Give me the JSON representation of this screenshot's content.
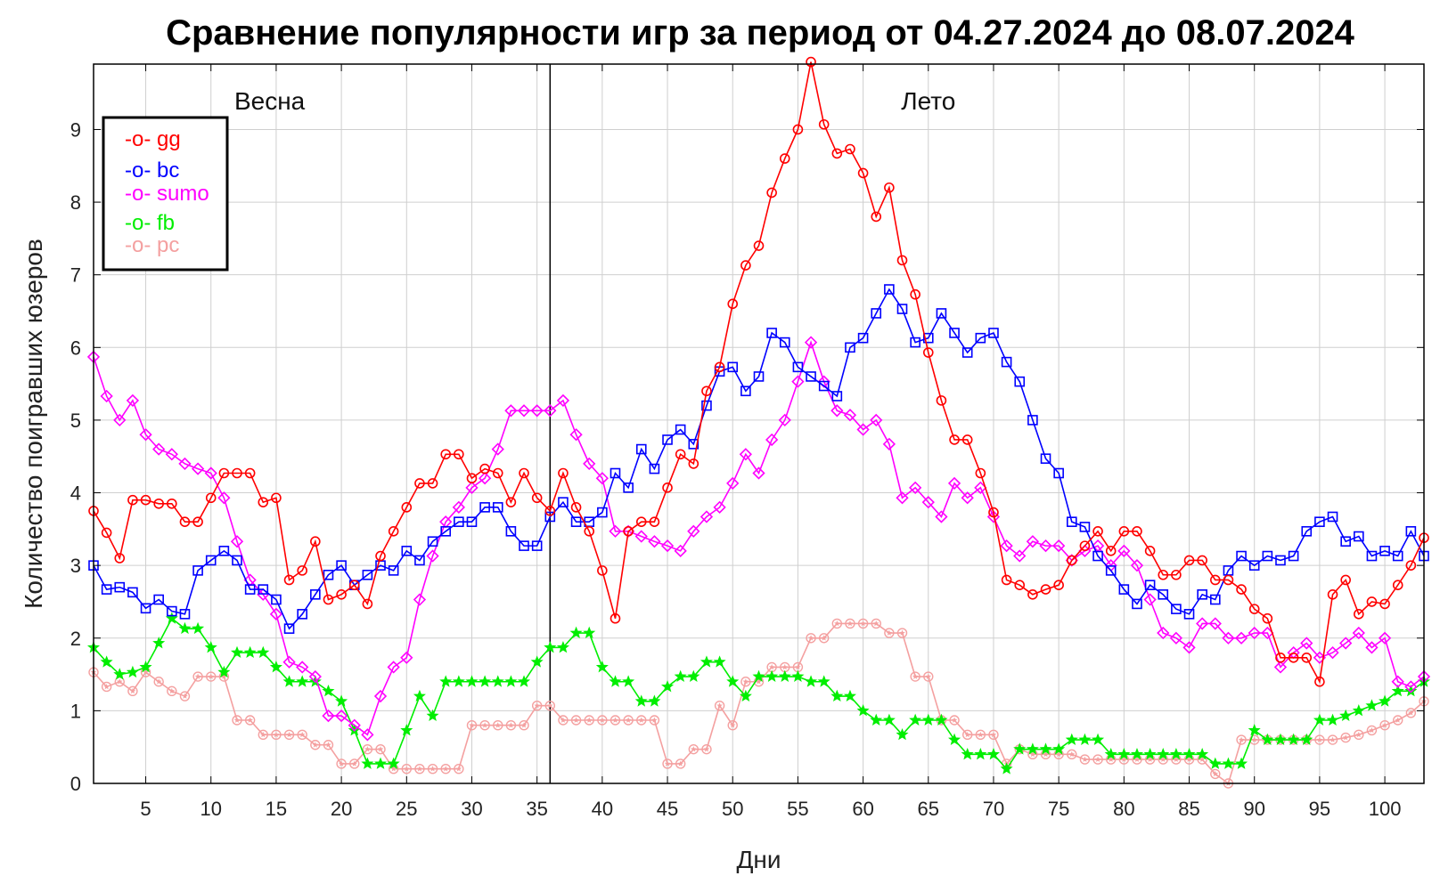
{
  "chart_data": {
    "type": "line",
    "title": "Сравнение популярности игр за период от 04.27.2024 до 08.07.2024",
    "xlabel": "Дни",
    "ylabel": "Количество поигравших юзеров",
    "xlim": [
      1,
      103
    ],
    "ylim": [
      0,
      9.9
    ],
    "xticks": [
      5,
      10,
      15,
      20,
      25,
      30,
      35,
      40,
      45,
      50,
      55,
      60,
      65,
      70,
      75,
      80,
      85,
      90,
      95,
      100
    ],
    "yticks": [
      0,
      1,
      2,
      3,
      4,
      5,
      6,
      7,
      8,
      9
    ],
    "grid": true,
    "legend_position": "top-left",
    "divider_x": 36,
    "annotations": [
      {
        "text": "Весна",
        "x": 14.5,
        "y": 9.4
      },
      {
        "text": "Лето",
        "x": 65,
        "y": 9.4
      }
    ],
    "series": [
      {
        "name": "gg",
        "legend_label": "-o- gg",
        "color": "#ff0000",
        "marker": "circle",
        "values": [
          3.75,
          3.45,
          3.1,
          3.9,
          3.9,
          3.85,
          3.85,
          3.6,
          3.6,
          3.93,
          4.27,
          4.27,
          4.27,
          3.87,
          3.93,
          2.8,
          2.93,
          3.33,
          2.53,
          2.6,
          2.73,
          2.47,
          3.13,
          3.47,
          3.8,
          4.13,
          4.13,
          4.53,
          4.53,
          4.2,
          4.33,
          4.27,
          3.87,
          4.27,
          3.93,
          3.75,
          4.27,
          3.8,
          3.47,
          2.93,
          2.27,
          3.47,
          3.6,
          3.6,
          4.07,
          4.53,
          4.4,
          5.4,
          5.73,
          6.6,
          7.13,
          7.4,
          8.13,
          8.6,
          9.0,
          9.93,
          9.07,
          8.67,
          8.73,
          8.4,
          7.8,
          8.2,
          7.2,
          6.73,
          5.93,
          5.27,
          4.73,
          4.73,
          4.27,
          3.73,
          2.8,
          2.73,
          2.6,
          2.67,
          2.73,
          3.07,
          3.27,
          3.47,
          3.2,
          3.47,
          3.47,
          3.2,
          2.87,
          2.87,
          3.07,
          3.07,
          2.8,
          2.8,
          2.67,
          2.4,
          2.27,
          1.73,
          1.73,
          1.73,
          1.4,
          2.6,
          2.8,
          2.33,
          2.5,
          2.47,
          2.73,
          3.0,
          3.38
        ]
      },
      {
        "name": "bc",
        "legend_label": "-o- bc",
        "color": "#0000ff",
        "marker": "square",
        "values": [
          3.0,
          2.67,
          2.7,
          2.63,
          2.41,
          2.53,
          2.37,
          2.33,
          2.93,
          3.07,
          3.2,
          3.07,
          2.67,
          2.67,
          2.53,
          2.13,
          2.33,
          2.6,
          2.87,
          3.0,
          2.73,
          2.87,
          3.0,
          2.93,
          3.2,
          3.07,
          3.33,
          3.47,
          3.6,
          3.6,
          3.8,
          3.8,
          3.47,
          3.27,
          3.27,
          3.67,
          3.87,
          3.6,
          3.6,
          3.73,
          4.27,
          4.07,
          4.6,
          4.33,
          4.73,
          4.87,
          4.67,
          5.2,
          5.67,
          5.73,
          5.4,
          5.6,
          6.2,
          6.07,
          5.73,
          5.6,
          5.47,
          5.33,
          6.0,
          6.13,
          6.47,
          6.8,
          6.53,
          6.07,
          6.13,
          6.47,
          6.2,
          5.93,
          6.13,
          6.2,
          5.8,
          5.53,
          5.0,
          4.47,
          4.27,
          3.6,
          3.53,
          3.13,
          2.93,
          2.67,
          2.47,
          2.73,
          2.6,
          2.4,
          2.33,
          2.6,
          2.53,
          2.93,
          3.13,
          3.0,
          3.13,
          3.07,
          3.13,
          3.47,
          3.6,
          3.67,
          3.33,
          3.4,
          3.13,
          3.2,
          3.13,
          3.47,
          3.13
        ]
      },
      {
        "name": "sumo",
        "legend_label": "-o- sumo",
        "color": "#ff00ff",
        "marker": "diamond",
        "values": [
          5.87,
          5.33,
          5.0,
          5.27,
          4.8,
          4.6,
          4.53,
          4.4,
          4.33,
          4.27,
          3.93,
          3.33,
          2.8,
          2.6,
          2.33,
          1.67,
          1.6,
          1.47,
          0.93,
          0.93,
          0.8,
          0.67,
          1.2,
          1.6,
          1.73,
          2.53,
          3.13,
          3.6,
          3.8,
          4.07,
          4.2,
          4.6,
          5.13,
          5.13,
          5.13,
          5.13,
          5.27,
          4.8,
          4.4,
          4.2,
          3.47,
          3.47,
          3.4,
          3.33,
          3.27,
          3.2,
          3.47,
          3.67,
          3.8,
          4.13,
          4.53,
          4.27,
          4.73,
          5.0,
          5.53,
          6.07,
          5.53,
          5.13,
          5.07,
          4.87,
          5.0,
          4.67,
          3.93,
          4.07,
          3.87,
          3.67,
          4.13,
          3.93,
          4.07,
          3.67,
          3.27,
          3.13,
          3.33,
          3.27,
          3.27,
          3.07,
          3.2,
          3.27,
          3.0,
          3.2,
          3.0,
          2.53,
          2.07,
          2.0,
          1.87,
          2.2,
          2.2,
          2.0,
          2.0,
          2.07,
          2.07,
          1.6,
          1.8,
          1.93,
          1.73,
          1.8,
          1.93,
          2.07,
          1.87,
          2.0,
          1.4,
          1.33,
          1.47
        ]
      },
      {
        "name": "fb",
        "legend_label": "-o- fb",
        "color": "#00ee00",
        "marker": "star",
        "values": [
          1.87,
          1.67,
          1.5,
          1.53,
          1.6,
          1.93,
          2.27,
          2.13,
          2.13,
          1.87,
          1.53,
          1.8,
          1.8,
          1.8,
          1.6,
          1.4,
          1.4,
          1.4,
          1.27,
          1.13,
          0.73,
          0.27,
          0.27,
          0.27,
          0.73,
          1.2,
          0.93,
          1.4,
          1.4,
          1.4,
          1.4,
          1.4,
          1.4,
          1.4,
          1.67,
          1.87,
          1.87,
          2.07,
          2.07,
          1.6,
          1.4,
          1.4,
          1.13,
          1.13,
          1.33,
          1.47,
          1.47,
          1.67,
          1.67,
          1.4,
          1.2,
          1.47,
          1.47,
          1.47,
          1.47,
          1.4,
          1.4,
          1.2,
          1.2,
          1.0,
          0.87,
          0.87,
          0.67,
          0.87,
          0.87,
          0.87,
          0.6,
          0.4,
          0.4,
          0.4,
          0.2,
          0.47,
          0.47,
          0.47,
          0.47,
          0.6,
          0.6,
          0.6,
          0.4,
          0.4,
          0.4,
          0.4,
          0.4,
          0.4,
          0.4,
          0.4,
          0.27,
          0.27,
          0.27,
          0.73,
          0.6,
          0.6,
          0.6,
          0.6,
          0.87,
          0.87,
          0.93,
          1.0,
          1.07,
          1.13,
          1.27,
          1.27,
          1.4
        ]
      },
      {
        "name": "pc",
        "legend_label": "-o- pc",
        "color": "#f4a0a0",
        "marker": "circle-star",
        "values": [
          1.53,
          1.33,
          1.4,
          1.27,
          1.53,
          1.4,
          1.27,
          1.2,
          1.47,
          1.47,
          1.47,
          0.87,
          0.87,
          0.67,
          0.67,
          0.67,
          0.67,
          0.53,
          0.53,
          0.27,
          0.27,
          0.47,
          0.47,
          0.2,
          0.2,
          0.2,
          0.2,
          0.2,
          0.2,
          0.8,
          0.8,
          0.8,
          0.8,
          0.8,
          1.07,
          1.07,
          0.87,
          0.87,
          0.87,
          0.87,
          0.87,
          0.87,
          0.87,
          0.87,
          0.27,
          0.27,
          0.47,
          0.47,
          1.07,
          0.8,
          1.4,
          1.4,
          1.6,
          1.6,
          1.6,
          2.0,
          2.0,
          2.2,
          2.2,
          2.2,
          2.2,
          2.07,
          2.07,
          1.47,
          1.47,
          0.87,
          0.87,
          0.67,
          0.67,
          0.67,
          0.27,
          0.47,
          0.4,
          0.4,
          0.4,
          0.4,
          0.33,
          0.33,
          0.33,
          0.33,
          0.33,
          0.33,
          0.33,
          0.33,
          0.33,
          0.33,
          0.13,
          0.0,
          0.6,
          0.6,
          0.6,
          0.6,
          0.6,
          0.6,
          0.6,
          0.6,
          0.63,
          0.67,
          0.73,
          0.8,
          0.87,
          0.97,
          1.13
        ]
      }
    ]
  }
}
